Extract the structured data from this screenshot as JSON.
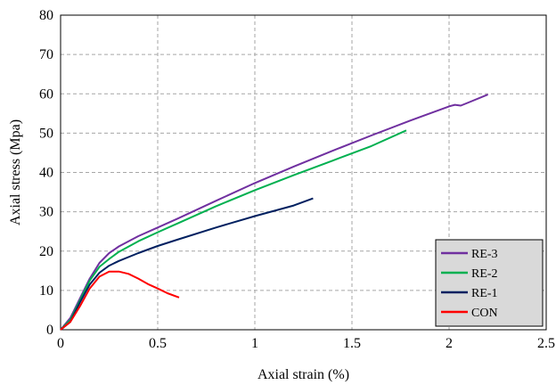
{
  "chart_data": {
    "type": "line",
    "title": "",
    "xlabel": "Axial strain (%)",
    "ylabel": "Axial stress (Mpa)",
    "xlim": [
      0,
      2.5
    ],
    "ylim": [
      0,
      80
    ],
    "x_ticks": [
      0,
      0.5,
      1,
      1.5,
      2,
      2.5
    ],
    "x_tick_labels": [
      "0",
      "0.5",
      "1",
      "1.5",
      "2",
      "2.5"
    ],
    "y_ticks": [
      0,
      10,
      20,
      30,
      40,
      50,
      60,
      70,
      80
    ],
    "y_tick_labels": [
      "0",
      "10",
      "20",
      "30",
      "40",
      "50",
      "60",
      "70",
      "80"
    ],
    "grid": true,
    "legend_position": "bottom-right",
    "series": [
      {
        "name": "RE-3",
        "color": "#7030a0",
        "points": [
          [
            0,
            0
          ],
          [
            0.05,
            3
          ],
          [
            0.1,
            8
          ],
          [
            0.15,
            13
          ],
          [
            0.2,
            17
          ],
          [
            0.25,
            19.5
          ],
          [
            0.3,
            21.2
          ],
          [
            0.4,
            23.8
          ],
          [
            0.5,
            26
          ],
          [
            0.6,
            28.2
          ],
          [
            0.8,
            32.8
          ],
          [
            1.0,
            37.3
          ],
          [
            1.2,
            41.5
          ],
          [
            1.4,
            45.5
          ],
          [
            1.6,
            49.4
          ],
          [
            1.8,
            53.2
          ],
          [
            2.0,
            56.8
          ],
          [
            2.03,
            57.2
          ],
          [
            2.06,
            57
          ],
          [
            2.1,
            57.8
          ],
          [
            2.2,
            59.8
          ]
        ]
      },
      {
        "name": "RE-2",
        "color": "#00b050",
        "points": [
          [
            0,
            0
          ],
          [
            0.05,
            2.5
          ],
          [
            0.1,
            7.5
          ],
          [
            0.15,
            12.5
          ],
          [
            0.2,
            16
          ],
          [
            0.25,
            18
          ],
          [
            0.3,
            19.8
          ],
          [
            0.4,
            22.5
          ],
          [
            0.5,
            24.8
          ],
          [
            0.6,
            27
          ],
          [
            0.8,
            31.4
          ],
          [
            1.0,
            35.5
          ],
          [
            1.2,
            39.3
          ],
          [
            1.4,
            43
          ],
          [
            1.6,
            46.7
          ],
          [
            1.78,
            50.7
          ]
        ]
      },
      {
        "name": "RE-1",
        "color": "#002060",
        "points": [
          [
            0,
            0
          ],
          [
            0.05,
            2
          ],
          [
            0.1,
            7
          ],
          [
            0.15,
            11.5
          ],
          [
            0.2,
            14.5
          ],
          [
            0.25,
            16.3
          ],
          [
            0.3,
            17.5
          ],
          [
            0.4,
            19.5
          ],
          [
            0.5,
            21.3
          ],
          [
            0.6,
            22.9
          ],
          [
            0.8,
            26
          ],
          [
            1.0,
            28.9
          ],
          [
            1.2,
            31.6
          ],
          [
            1.3,
            33.4
          ]
        ]
      },
      {
        "name": "CON",
        "color": "#ff0000",
        "points": [
          [
            0,
            0
          ],
          [
            0.05,
            2
          ],
          [
            0.1,
            6
          ],
          [
            0.15,
            10.5
          ],
          [
            0.2,
            13.5
          ],
          [
            0.25,
            14.8
          ],
          [
            0.3,
            14.8
          ],
          [
            0.35,
            14.2
          ],
          [
            0.4,
            13
          ],
          [
            0.45,
            11.6
          ],
          [
            0.5,
            10.5
          ],
          [
            0.55,
            9.3
          ],
          [
            0.61,
            8.2
          ]
        ]
      }
    ]
  }
}
